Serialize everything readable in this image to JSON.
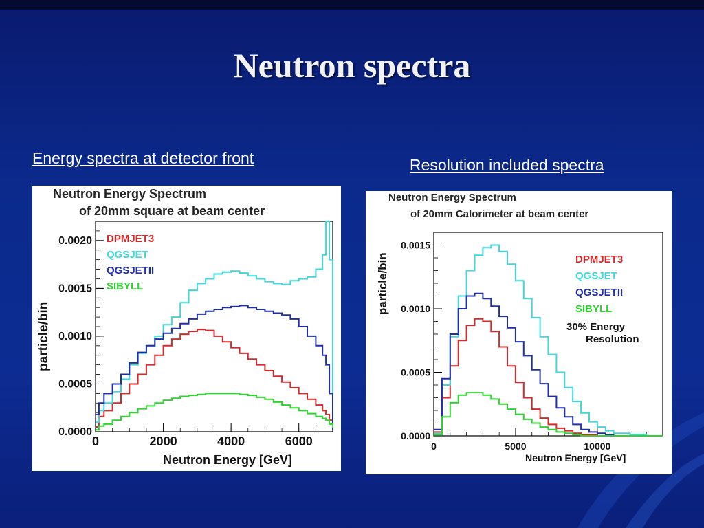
{
  "slide": {
    "title": "Neutron spectra",
    "caption_left": "Energy spectra at detector front",
    "caption_right": "Resolution included spectra"
  },
  "chart_data": [
    {
      "type": "line",
      "title": "Neutron Energy Spectrum",
      "subtitle": "of 20mm square at beam center",
      "xlabel": "Neutron Energy [GeV]",
      "ylabel": "particle/bin",
      "xlim": [
        0,
        7000
      ],
      "ylim": [
        0,
        0.0022
      ],
      "xticks": [
        0,
        2000,
        4000,
        6000
      ],
      "xtick_labels": [
        "0",
        "2000",
        "4000",
        "6000"
      ],
      "yticks": [
        0,
        0.0005,
        0.001,
        0.0015,
        0.002
      ],
      "ytick_labels": [
        "0.0000",
        "0.0005",
        "0.0010",
        "0.0015",
        "0.0020"
      ],
      "legend_position": "top-left",
      "x": [
        0,
        100,
        250,
        500,
        750,
        1000,
        1250,
        1500,
        1750,
        2000,
        2250,
        2500,
        2750,
        3000,
        3250,
        3500,
        3750,
        4000,
        4250,
        4500,
        4750,
        5000,
        5250,
        5500,
        5750,
        6000,
        6250,
        6500,
        6700,
        6800,
        6900,
        7000
      ],
      "series": [
        {
          "name": "DPMJET3",
          "color": "#d42a2a",
          "values": [
            5e-05,
            0.00016,
            0.00022,
            0.0003,
            0.0004,
            0.0005,
            0.0006,
            0.0007,
            0.0008,
            0.0009,
            0.00097,
            0.00102,
            0.00105,
            0.00107,
            0.00106,
            0.001,
            0.00094,
            0.00088,
            0.00082,
            0.00076,
            0.0007,
            0.00064,
            0.00058,
            0.00052,
            0.00046,
            0.0004,
            0.00034,
            0.00028,
            0.00022,
            0.00018,
            0.00012,
            8e-05
          ]
        },
        {
          "name": "QGSJET",
          "color": "#3fd6dc",
          "values": [
            0.0001,
            0.00022,
            0.0003,
            0.00042,
            0.00055,
            0.0007,
            0.00082,
            0.0009,
            0.001,
            0.00112,
            0.0012,
            0.00135,
            0.00148,
            0.00155,
            0.0016,
            0.00165,
            0.00167,
            0.00168,
            0.00166,
            0.00163,
            0.0016,
            0.00157,
            0.00155,
            0.00154,
            0.00158,
            0.0016,
            0.00162,
            0.0017,
            0.00185,
            0.0022,
            0.0018,
            2e-05
          ]
        },
        {
          "name": "QGSJETII",
          "color": "#1f2fa8",
          "values": [
            0.00018,
            0.0003,
            0.0004,
            0.0005,
            0.0006,
            0.00072,
            0.00083,
            0.0009,
            0.00097,
            0.00103,
            0.00108,
            0.00113,
            0.00118,
            0.00123,
            0.00126,
            0.00128,
            0.0013,
            0.00131,
            0.00132,
            0.0013,
            0.00128,
            0.00126,
            0.00124,
            0.00122,
            0.00118,
            0.0011,
            0.001,
            0.0009,
            0.0008,
            0.0007,
            0.0004,
            2e-05
          ]
        },
        {
          "name": "SIBYLL",
          "color": "#2ed52e",
          "values": [
            2e-05,
            6e-05,
            8e-05,
            0.00012,
            0.00016,
            0.0002,
            0.00024,
            0.00027,
            0.0003,
            0.00033,
            0.00035,
            0.00037,
            0.00038,
            0.00039,
            0.0004,
            0.0004,
            0.0004,
            0.0004,
            0.00039,
            0.00038,
            0.00036,
            0.00034,
            0.00031,
            0.00028,
            0.00025,
            0.00022,
            0.00019,
            0.00016,
            0.00014,
            0.00012,
            8e-05,
            4e-05
          ]
        }
      ]
    },
    {
      "type": "line",
      "title": "Neutron Energy Spectrum",
      "subtitle": "of 20mm Calorimeter at beam center",
      "xlabel": "Neutron Energy [GeV]",
      "ylabel": "particle/bin",
      "xlim": [
        0,
        14000
      ],
      "ylim": [
        0,
        0.0016
      ],
      "xticks": [
        0,
        5000,
        10000
      ],
      "xtick_labels": [
        "0",
        "5000",
        "10000"
      ],
      "yticks": [
        0,
        0.0005,
        0.001,
        0.0015
      ],
      "ytick_labels": [
        "0.0000",
        "0.0005",
        "0.0010",
        "0.0015"
      ],
      "legend_position": "top-right",
      "annotation": [
        "30% Energy",
        "Resolution"
      ],
      "x": [
        0,
        500,
        1000,
        1500,
        2000,
        2500,
        3000,
        3500,
        4000,
        4500,
        5000,
        5500,
        6000,
        6500,
        7000,
        7500,
        8000,
        8500,
        9000,
        9500,
        10000,
        10500,
        11000,
        12000,
        13000,
        14000
      ],
      "series": [
        {
          "name": "DPMJET3",
          "color": "#d42a2a",
          "values": [
            3e-05,
            0.0003,
            0.00055,
            0.00075,
            0.00087,
            0.00092,
            0.0009,
            0.00082,
            0.0007,
            0.00055,
            0.00042,
            0.0003,
            0.00021,
            0.00014,
            9e-05,
            6e-05,
            4e-05,
            2e-05,
            1e-05,
            1e-05,
            0.0,
            0.0,
            0.0,
            0.0,
            0.0,
            0.0
          ]
        },
        {
          "name": "QGSJET",
          "color": "#3fd6dc",
          "values": [
            2e-05,
            0.0004,
            0.00078,
            0.0011,
            0.0013,
            0.00142,
            0.00148,
            0.0015,
            0.00145,
            0.00135,
            0.00122,
            0.00108,
            0.00093,
            0.00078,
            0.00064,
            0.0005,
            0.00038,
            0.00027,
            0.00018,
            0.00011,
            7e-05,
            4e-05,
            2e-05,
            1e-05,
            0.0,
            0.0
          ]
        },
        {
          "name": "QGSJETII",
          "color": "#1f2fa8",
          "values": [
            5e-05,
            0.00045,
            0.0008,
            0.001,
            0.0011,
            0.00112,
            0.00108,
            0.00102,
            0.00094,
            0.00085,
            0.00074,
            0.00063,
            0.00052,
            0.00041,
            0.00031,
            0.00022,
            0.00015,
            9e-05,
            5e-05,
            3e-05,
            2e-05,
            1e-05,
            0.0,
            0.0,
            0.0,
            0.0
          ]
        },
        {
          "name": "SIBYLL",
          "color": "#2ed52e",
          "values": [
            1e-05,
            0.00015,
            0.00026,
            0.00032,
            0.00034,
            0.00034,
            0.00032,
            0.00029,
            0.00025,
            0.00021,
            0.00017,
            0.00013,
            0.0001,
            7e-05,
            5e-05,
            3e-05,
            2e-05,
            1e-05,
            0.0,
            0.0,
            0.0,
            0.0,
            0.0,
            0.0,
            0.0,
            0.0
          ]
        }
      ]
    }
  ]
}
